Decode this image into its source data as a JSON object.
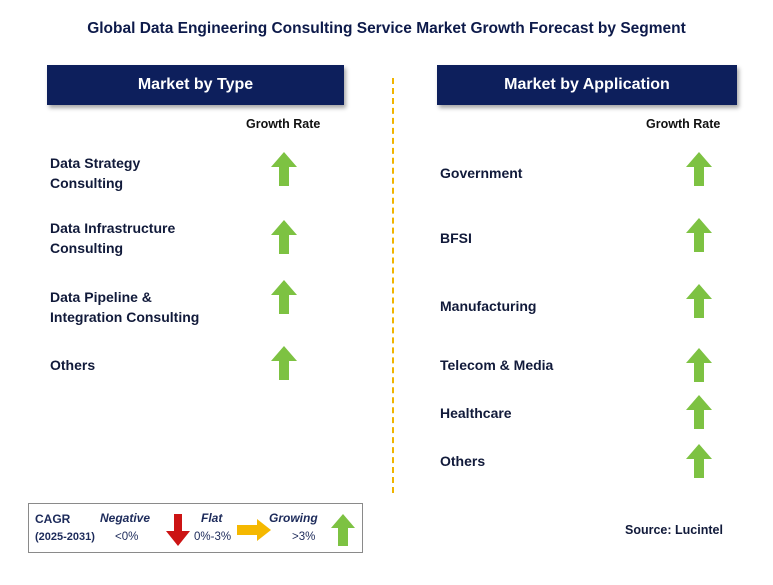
{
  "title": "Global Data Engineering Consulting Service Market Growth Forecast by Segment",
  "left_panel": {
    "header": "Market by Type",
    "growth_label": "Growth Rate",
    "items": [
      {
        "line1": "Data Strategy",
        "line2": "Consulting",
        "trend": "growing"
      },
      {
        "line1": "Data Infrastructure",
        "line2": "Consulting",
        "trend": "growing"
      },
      {
        "line1": "Data Pipeline &",
        "line2": "Integration Consulting",
        "trend": "growing"
      },
      {
        "line1": "Others",
        "line2": "",
        "trend": "growing"
      }
    ]
  },
  "right_panel": {
    "header": "Market by Application",
    "growth_label": "Growth Rate",
    "items": [
      {
        "label": "Government",
        "trend": "growing"
      },
      {
        "label": "BFSI",
        "trend": "growing"
      },
      {
        "label": "Manufacturing",
        "trend": "growing"
      },
      {
        "label": "Telecom & Media",
        "trend": "growing"
      },
      {
        "label": "Healthcare",
        "trend": "growing"
      },
      {
        "label": "Others",
        "trend": "growing"
      }
    ]
  },
  "legend": {
    "cagr": "CAGR",
    "period": "(2025-2031)",
    "negative": "Negative",
    "negative_value": "<0%",
    "flat": "Flat",
    "flat_value": "0%-3%",
    "growing": "Growing",
    "growing_value": ">3%"
  },
  "source": "Source: Lucintel",
  "colors": {
    "header_bg": "#0d1f5c",
    "growing_arrow": "#7dc242",
    "negative_arrow": "#cc1414",
    "flat_arrow": "#f5b800",
    "divider": "#f0b400"
  }
}
